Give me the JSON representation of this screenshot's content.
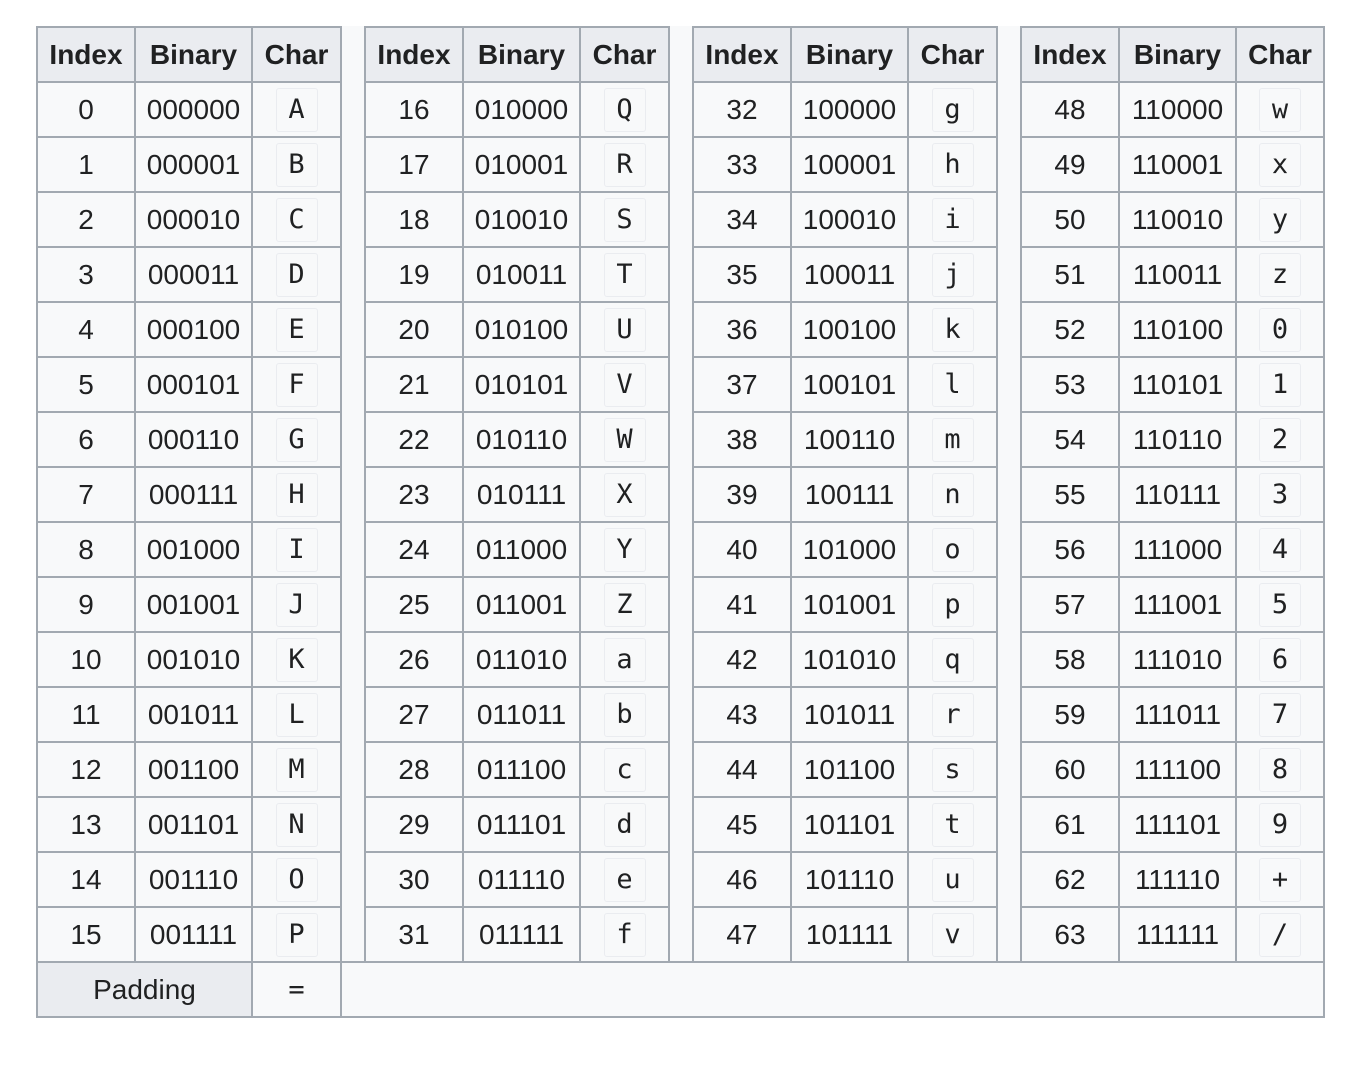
{
  "headers": {
    "index": "Index",
    "binary": "Binary",
    "char": "Char"
  },
  "rows": [
    [
      [
        "0",
        "000000",
        "A"
      ],
      [
        "16",
        "010000",
        "Q"
      ],
      [
        "32",
        "100000",
        "g"
      ],
      [
        "48",
        "110000",
        "w"
      ]
    ],
    [
      [
        "1",
        "000001",
        "B"
      ],
      [
        "17",
        "010001",
        "R"
      ],
      [
        "33",
        "100001",
        "h"
      ],
      [
        "49",
        "110001",
        "x"
      ]
    ],
    [
      [
        "2",
        "000010",
        "C"
      ],
      [
        "18",
        "010010",
        "S"
      ],
      [
        "34",
        "100010",
        "i"
      ],
      [
        "50",
        "110010",
        "y"
      ]
    ],
    [
      [
        "3",
        "000011",
        "D"
      ],
      [
        "19",
        "010011",
        "T"
      ],
      [
        "35",
        "100011",
        "j"
      ],
      [
        "51",
        "110011",
        "z"
      ]
    ],
    [
      [
        "4",
        "000100",
        "E"
      ],
      [
        "20",
        "010100",
        "U"
      ],
      [
        "36",
        "100100",
        "k"
      ],
      [
        "52",
        "110100",
        "0"
      ]
    ],
    [
      [
        "5",
        "000101",
        "F"
      ],
      [
        "21",
        "010101",
        "V"
      ],
      [
        "37",
        "100101",
        "l"
      ],
      [
        "53",
        "110101",
        "1"
      ]
    ],
    [
      [
        "6",
        "000110",
        "G"
      ],
      [
        "22",
        "010110",
        "W"
      ],
      [
        "38",
        "100110",
        "m"
      ],
      [
        "54",
        "110110",
        "2"
      ]
    ],
    [
      [
        "7",
        "000111",
        "H"
      ],
      [
        "23",
        "010111",
        "X"
      ],
      [
        "39",
        "100111",
        "n"
      ],
      [
        "55",
        "110111",
        "3"
      ]
    ],
    [
      [
        "8",
        "001000",
        "I"
      ],
      [
        "24",
        "011000",
        "Y"
      ],
      [
        "40",
        "101000",
        "o"
      ],
      [
        "56",
        "111000",
        "4"
      ]
    ],
    [
      [
        "9",
        "001001",
        "J"
      ],
      [
        "25",
        "011001",
        "Z"
      ],
      [
        "41",
        "101001",
        "p"
      ],
      [
        "57",
        "111001",
        "5"
      ]
    ],
    [
      [
        "10",
        "001010",
        "K"
      ],
      [
        "26",
        "011010",
        "a"
      ],
      [
        "42",
        "101010",
        "q"
      ],
      [
        "58",
        "111010",
        "6"
      ]
    ],
    [
      [
        "11",
        "001011",
        "L"
      ],
      [
        "27",
        "011011",
        "b"
      ],
      [
        "43",
        "101011",
        "r"
      ],
      [
        "59",
        "111011",
        "7"
      ]
    ],
    [
      [
        "12",
        "001100",
        "M"
      ],
      [
        "28",
        "011100",
        "c"
      ],
      [
        "44",
        "101100",
        "s"
      ],
      [
        "60",
        "111100",
        "8"
      ]
    ],
    [
      [
        "13",
        "001101",
        "N"
      ],
      [
        "29",
        "011101",
        "d"
      ],
      [
        "45",
        "101101",
        "t"
      ],
      [
        "61",
        "111101",
        "9"
      ]
    ],
    [
      [
        "14",
        "001110",
        "O"
      ],
      [
        "30",
        "011110",
        "e"
      ],
      [
        "46",
        "101110",
        "u"
      ],
      [
        "62",
        "111110",
        "+"
      ]
    ],
    [
      [
        "15",
        "001111",
        "P"
      ],
      [
        "31",
        "011111",
        "f"
      ],
      [
        "47",
        "101111",
        "v"
      ],
      [
        "63",
        "111111",
        "/"
      ]
    ]
  ],
  "padding": {
    "label": "Padding",
    "char": "="
  }
}
